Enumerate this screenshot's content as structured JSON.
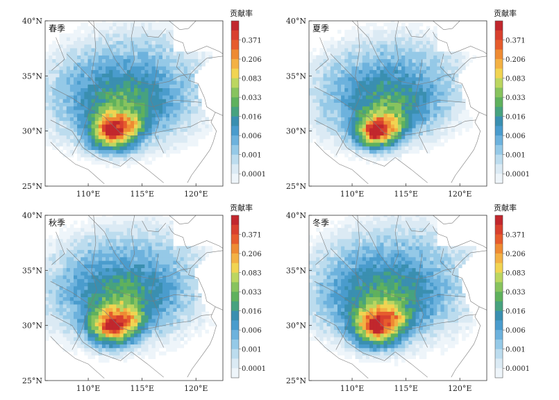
{
  "panels": [
    {
      "id": "spring",
      "label": "春季",
      "hotspot_intensity": 1.0,
      "spread": 1.0
    },
    {
      "id": "summer",
      "label": "夏季",
      "hotspot_intensity": 0.95,
      "spread": 0.9
    },
    {
      "id": "autumn",
      "label": "秋季",
      "hotspot_intensity": 1.0,
      "spread": 1.0
    },
    {
      "id": "winter",
      "label": "冬季",
      "hotspot_intensity": 1.0,
      "spread": 1.05
    }
  ],
  "axes": {
    "lat_ticks": [
      "25°N",
      "30°N",
      "35°N",
      "40°N"
    ],
    "lon_ticks": [
      "110°E",
      "115°E",
      "120°E"
    ]
  },
  "colorbar": {
    "title": "贡献率",
    "tick_labels": [
      "0.371",
      "0.206",
      "0.083",
      "0.033",
      "0.016",
      "0.006",
      "0.001",
      "0.0001"
    ],
    "colors": [
      "#c1272d",
      "#d8402e",
      "#e65c2d",
      "#ee8b33",
      "#f3b144",
      "#f1d452",
      "#bcd660",
      "#88c35e",
      "#5fb15d",
      "#47a27f",
      "#3a8fb0",
      "#4a9ccd",
      "#6db2dd",
      "#95c9e7",
      "#bcdcee",
      "#dbeaf4",
      "#eef5fa"
    ]
  }
}
